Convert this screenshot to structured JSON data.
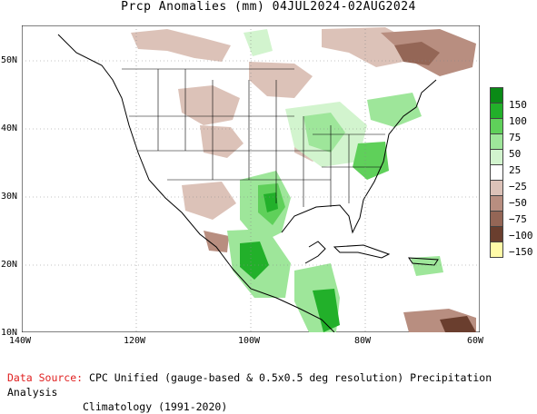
{
  "title": "Prcp Anomalies (mm) 04JUL2024-02AUG2024",
  "map": {
    "y_ticks": [
      "50N",
      "40N",
      "30N",
      "20N",
      "10N"
    ],
    "x_ticks": [
      "140W",
      "120W",
      "100W",
      "80W",
      "60W"
    ]
  },
  "legend": {
    "items": [
      {
        "label": "150",
        "color": "#0a8a16"
      },
      {
        "label": "100",
        "color": "#22b02a"
      },
      {
        "label": "75",
        "color": "#5fd05a"
      },
      {
        "label": "50",
        "color": "#9ee69a"
      },
      {
        "label": "25",
        "color": "#d2f4ce"
      },
      {
        "label": "−25",
        "color": "#ffffff"
      },
      {
        "label": "−50",
        "color": "#dcc2b8"
      },
      {
        "label": "−75",
        "color": "#b88e80"
      },
      {
        "label": "−100",
        "color": "#946656"
      },
      {
        "label": "−150",
        "color": "#6a3e2e"
      },
      {
        "label": "",
        "color": "#fffaa8"
      }
    ]
  },
  "footer": {
    "source_label": "Data Source:",
    "source_text": "CPC Unified (gauge-based & 0.5x0.5 deg resolution) Precipitation Analysis",
    "climatology": "Climatology (1991-2020)"
  }
}
